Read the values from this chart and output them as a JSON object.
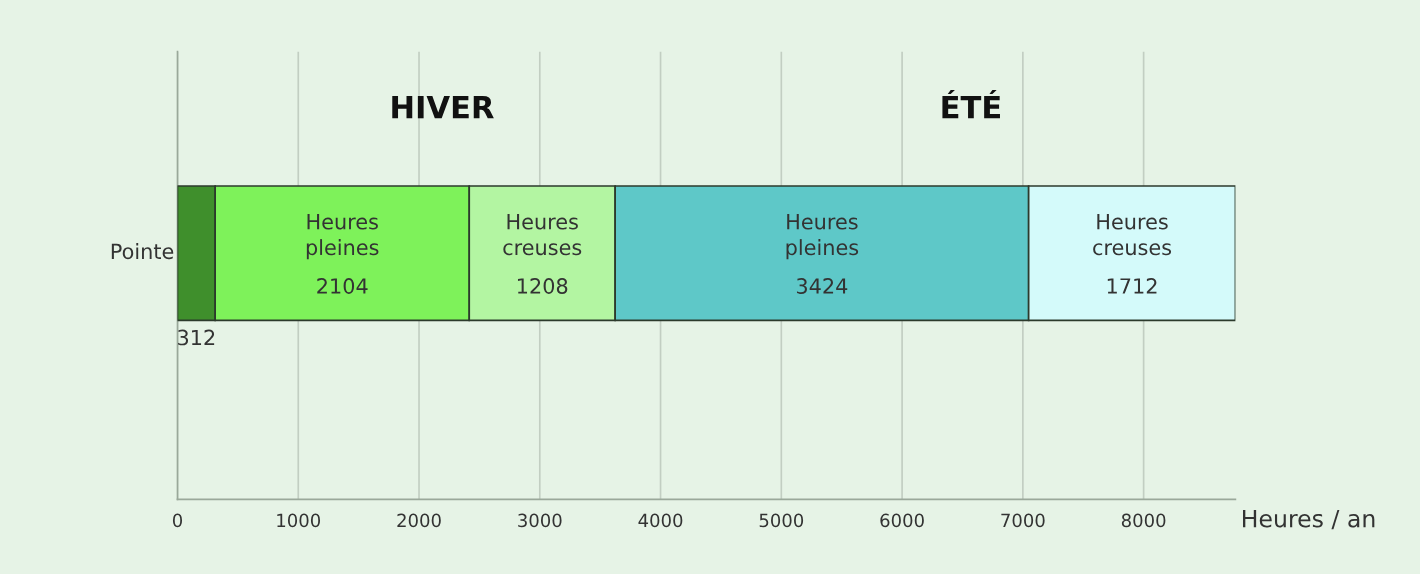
{
  "chart_data": {
    "type": "bar",
    "orientation": "horizontal",
    "stacked": true,
    "categories": [
      null
    ],
    "series": [
      {
        "name": "Pointe",
        "color": "#3f8f2c",
        "values": [
          312
        ]
      },
      {
        "name": "Heures pleines",
        "color": "#7ef25a",
        "values": [
          2104
        ]
      },
      {
        "name": "Heures creuses",
        "color": "#b3f5a2",
        "values": [
          1208
        ]
      },
      {
        "name": "Heures pleines",
        "color": "#5ec8c8",
        "values": [
          3424
        ]
      },
      {
        "name": "Heures creuses",
        "color": "#d4fafa",
        "values": [
          1712
        ]
      }
    ],
    "xlabel": "Heures / an",
    "xlim": [
      0,
      8760
    ],
    "xticks": [
      0,
      1000,
      2000,
      3000,
      4000,
      5000,
      6000,
      7000,
      8000
    ],
    "grid": "x",
    "data_labels": true,
    "tick_labels": "x",
    "annotations": [
      "HIVER",
      "ÉTÉ"
    ]
  }
}
